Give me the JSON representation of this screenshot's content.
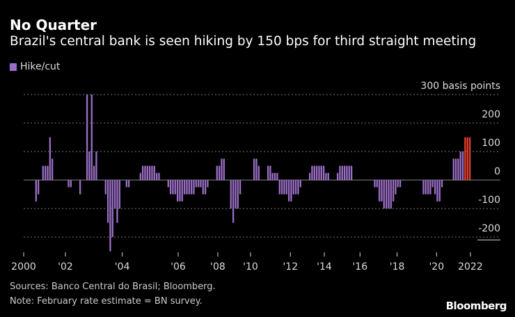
{
  "header": {
    "title": "No Quarter",
    "subtitle": "Brazil's central bank is seen hiking by 150 bps for third straight meeting"
  },
  "legend": {
    "label": "Hike/cut"
  },
  "footer": {
    "sources": "Sources: Banco Central do Brasil; Bloomberg.",
    "note": "Note: February rate estimate = BN survey.",
    "logo": "Bloomberg"
  },
  "colors": {
    "hike_cut": "#9b6fc8",
    "estimate": "#e8412c",
    "grid": "#777777"
  },
  "chart_data": {
    "type": "bar",
    "title": "No Quarter",
    "subtitle": "Brazil's central bank is seen hiking by 150 bps for third straight meeting",
    "ylabel": "basis points",
    "y_unit_label": "300 basis points",
    "ylim": [
      -250,
      300
    ],
    "yticks": [
      300,
      200,
      100,
      0,
      -100,
      -200
    ],
    "ytick_labels": [
      "300 basis points",
      "200",
      "100",
      "0",
      "-100",
      "-200"
    ],
    "grid": true,
    "legend": [
      "Hike/cut"
    ],
    "legend_placement": "top-left",
    "x_note": "one bar per Copom meeting, 2000 to Feb 2022",
    "xticks": [
      {
        "meeting_index": 0,
        "label": "2000"
      },
      {
        "meeting_index": 18,
        "label": "'02"
      },
      {
        "meeting_index": 42.5,
        "label": "'04"
      },
      {
        "meeting_index": 66.6,
        "label": "'06"
      },
      {
        "meeting_index": 83.7,
        "label": "'08"
      },
      {
        "meeting_index": 97.8,
        "label": "'10"
      },
      {
        "meeting_index": 115,
        "label": "'12"
      },
      {
        "meeting_index": 129.6,
        "label": "'14"
      },
      {
        "meeting_index": 145,
        "label": "'16"
      },
      {
        "meeting_index": 161,
        "label": "'18"
      },
      {
        "meeting_index": 178,
        "label": "'20"
      },
      {
        "meeting_index": 192.6,
        "label": "2022"
      }
    ],
    "meeting_count": 193,
    "nonzero_changes": [
      [
        5,
        -75
      ],
      [
        6,
        -50
      ],
      [
        8,
        50
      ],
      [
        9,
        50
      ],
      [
        10,
        50
      ],
      [
        11,
        150
      ],
      [
        12,
        75
      ],
      [
        19,
        -25
      ],
      [
        20,
        -25
      ],
      [
        24,
        -50
      ],
      [
        27,
        300
      ],
      [
        28,
        100
      ],
      [
        29,
        300
      ],
      [
        30,
        50
      ],
      [
        31,
        100
      ],
      [
        35,
        -50
      ],
      [
        36,
        -150
      ],
      [
        37,
        -250
      ],
      [
        38,
        -200
      ],
      [
        39,
        -100
      ],
      [
        40,
        -150
      ],
      [
        41,
        -100
      ],
      [
        44,
        -25
      ],
      [
        45,
        -25
      ],
      [
        50,
        25
      ],
      [
        51,
        50
      ],
      [
        52,
        50
      ],
      [
        53,
        50
      ],
      [
        54,
        50
      ],
      [
        55,
        50
      ],
      [
        56,
        50
      ],
      [
        57,
        25
      ],
      [
        58,
        25
      ],
      [
        62,
        -25
      ],
      [
        63,
        -50
      ],
      [
        64,
        -50
      ],
      [
        65,
        -50
      ],
      [
        66,
        -75
      ],
      [
        67,
        -75
      ],
      [
        68,
        -75
      ],
      [
        69,
        -50
      ],
      [
        70,
        -50
      ],
      [
        71,
        -50
      ],
      [
        72,
        -50
      ],
      [
        73,
        -50
      ],
      [
        74,
        -25
      ],
      [
        75,
        -25
      ],
      [
        76,
        -25
      ],
      [
        77,
        -50
      ],
      [
        78,
        -50
      ],
      [
        79,
        -25
      ],
      [
        83,
        50
      ],
      [
        84,
        50
      ],
      [
        85,
        75
      ],
      [
        86,
        75
      ],
      [
        89,
        -100
      ],
      [
        90,
        -150
      ],
      [
        91,
        -100
      ],
      [
        92,
        -100
      ],
      [
        93,
        -50
      ],
      [
        99,
        75
      ],
      [
        100,
        75
      ],
      [
        101,
        50
      ],
      [
        105,
        50
      ],
      [
        106,
        50
      ],
      [
        107,
        25
      ],
      [
        108,
        25
      ],
      [
        109,
        25
      ],
      [
        110,
        -50
      ],
      [
        111,
        -50
      ],
      [
        112,
        -50
      ],
      [
        113,
        -50
      ],
      [
        114,
        -75
      ],
      [
        115,
        -75
      ],
      [
        116,
        -50
      ],
      [
        117,
        -50
      ],
      [
        118,
        -50
      ],
      [
        119,
        -25
      ],
      [
        123,
        25
      ],
      [
        124,
        50
      ],
      [
        125,
        50
      ],
      [
        126,
        50
      ],
      [
        127,
        50
      ],
      [
        128,
        50
      ],
      [
        129,
        50
      ],
      [
        130,
        25
      ],
      [
        131,
        25
      ],
      [
        135,
        25
      ],
      [
        136,
        50
      ],
      [
        137,
        50
      ],
      [
        138,
        50
      ],
      [
        139,
        50
      ],
      [
        140,
        50
      ],
      [
        141,
        50
      ],
      [
        151,
        -25
      ],
      [
        152,
        -25
      ],
      [
        153,
        -75
      ],
      [
        154,
        -75
      ],
      [
        155,
        -100
      ],
      [
        156,
        -100
      ],
      [
        157,
        -100
      ],
      [
        158,
        -100
      ],
      [
        159,
        -75
      ],
      [
        160,
        -50
      ],
      [
        161,
        -25
      ],
      [
        162,
        -25
      ],
      [
        172,
        -50
      ],
      [
        173,
        -50
      ],
      [
        174,
        -50
      ],
      [
        175,
        -50
      ],
      [
        176,
        -25
      ],
      [
        177,
        -50
      ],
      [
        178,
        -75
      ],
      [
        179,
        -75
      ],
      [
        180,
        -25
      ],
      [
        185,
        75
      ],
      [
        186,
        75
      ],
      [
        187,
        75
      ],
      [
        188,
        100
      ],
      [
        189,
        100
      ],
      [
        190,
        150
      ],
      [
        191,
        150
      ],
      [
        192,
        150
      ]
    ],
    "estimate_indices": [
      190,
      191,
      192
    ]
  }
}
